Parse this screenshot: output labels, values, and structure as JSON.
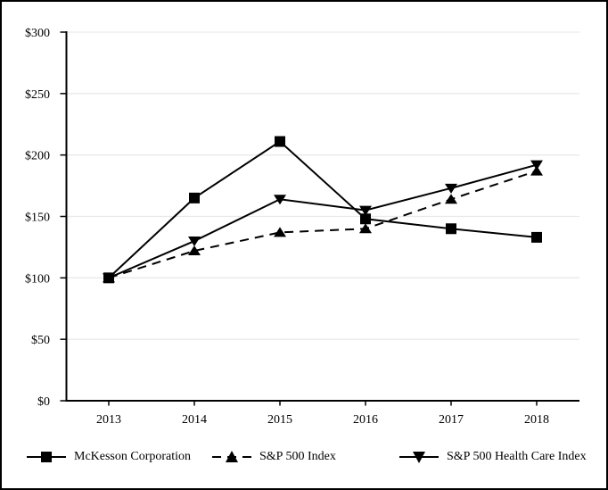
{
  "chart_data": {
    "type": "line",
    "title": "",
    "xlabel": "",
    "ylabel": "",
    "x_tick_labels": [
      "2013",
      "2014",
      "2015",
      "2016",
      "2017",
      "2018"
    ],
    "y_tick_labels": [
      "$0",
      "$50",
      "$100",
      "$150",
      "$200",
      "$250",
      "$300"
    ],
    "y_tick_values": [
      0,
      50,
      100,
      150,
      200,
      250,
      300
    ],
    "ylim": [
      0,
      300
    ],
    "grid": true,
    "legend_position": "bottom",
    "series": [
      {
        "name": "McKesson Corporation",
        "values": [
          100,
          165,
          211,
          148,
          140,
          133
        ],
        "line_style": "solid",
        "marker": "square",
        "color": "#000000"
      },
      {
        "name": "S&P 500 Index",
        "values": [
          100,
          122,
          137,
          140,
          164,
          187
        ],
        "line_style": "dashed",
        "marker": "triangle-up",
        "color": "#000000"
      },
      {
        "name": "S&P 500 Health Care Index",
        "values": [
          100,
          130,
          164,
          155,
          173,
          192
        ],
        "line_style": "solid",
        "marker": "triangle-down",
        "color": "#000000"
      }
    ],
    "colors": {
      "axis": "#000000",
      "grid": "#e9e9e9",
      "background": "#ffffff",
      "frame_border": "#000000"
    }
  }
}
